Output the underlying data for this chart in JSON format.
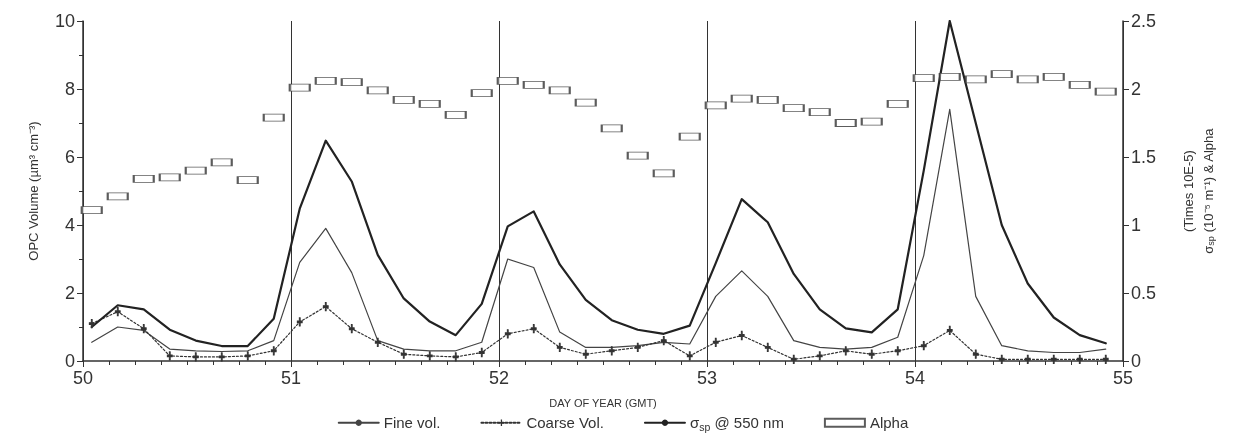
{
  "chart_data": {
    "type": "line",
    "xlabel": "DAY OF YEAR (GMT)",
    "ylabel": "OPC Volume (µm³ cm⁻³)",
    "y2label": "(Times 10E-5)\nσ$_{sp}$ (10⁻⁵ m⁻¹) & Alpha",
    "x": [
      50.042,
      50.167,
      50.292,
      50.417,
      50.542,
      50.667,
      50.792,
      50.917,
      51.042,
      51.167,
      51.292,
      51.417,
      51.542,
      51.667,
      51.792,
      51.917,
      52.042,
      52.167,
      52.292,
      52.417,
      52.542,
      52.667,
      52.792,
      52.917,
      53.042,
      53.167,
      53.292,
      53.417,
      53.542,
      53.667,
      53.792,
      53.917,
      54.042,
      54.167,
      54.292,
      54.417,
      54.542,
      54.667,
      54.792,
      54.917
    ],
    "series": [
      {
        "name": "Fine vol.",
        "color": "#444444",
        "line_style": "solid",
        "values": [
          0.55,
          1.0,
          0.9,
          0.35,
          0.3,
          0.28,
          0.3,
          0.6,
          2.9,
          3.9,
          2.6,
          0.6,
          0.35,
          0.3,
          0.3,
          0.55,
          3.0,
          2.75,
          0.85,
          0.4,
          0.4,
          0.45,
          0.55,
          0.5,
          1.9,
          2.65,
          1.9,
          0.6,
          0.4,
          0.35,
          0.4,
          0.7,
          3.1,
          7.4,
          1.9,
          0.45,
          0.3,
          0.25,
          0.25,
          0.35
        ]
      },
      {
        "name": "Coarse Vol.",
        "color": "#333333",
        "line_style": "dotted",
        "marker": "cross",
        "values": [
          1.1,
          1.45,
          0.95,
          0.15,
          0.12,
          0.12,
          0.15,
          0.3,
          1.15,
          1.6,
          0.95,
          0.55,
          0.2,
          0.15,
          0.12,
          0.25,
          0.8,
          0.95,
          0.4,
          0.2,
          0.3,
          0.4,
          0.6,
          0.15,
          0.55,
          0.75,
          0.4,
          0.05,
          0.15,
          0.3,
          0.2,
          0.3,
          0.45,
          0.9,
          0.2,
          0.05,
          0.05,
          0.05,
          0.05,
          0.05
        ]
      },
      {
        "name": "σ$_{sp}$ @ 550 nm",
        "type": "line",
        "axis": "y2",
        "color": "#222222",
        "line_style": "solid",
        "values": [
          0.25,
          0.41,
          0.38,
          0.23,
          0.15,
          0.11,
          0.11,
          0.31,
          1.12,
          1.62,
          1.32,
          0.78,
          0.46,
          0.29,
          0.19,
          0.42,
          0.99,
          1.1,
          0.71,
          0.45,
          0.3,
          0.23,
          0.2,
          0.26,
          0.72,
          1.19,
          1.02,
          0.64,
          0.38,
          0.24,
          0.21,
          0.38,
          1.4,
          2.5,
          1.75,
          1.0,
          0.57,
          0.32,
          0.19,
          0.13
        ]
      },
      {
        "name": "Alpha",
        "type": "scatter",
        "axis": "y2",
        "color": "#333333",
        "marker": "square",
        "values": [
          1.11,
          1.21,
          1.34,
          1.35,
          1.4,
          1.46,
          1.33,
          1.79,
          2.01,
          2.06,
          2.05,
          1.99,
          1.92,
          1.89,
          1.81,
          1.97,
          2.06,
          2.03,
          1.99,
          1.9,
          1.71,
          1.51,
          1.38,
          1.65,
          1.88,
          1.93,
          1.92,
          1.86,
          1.83,
          1.75,
          1.76,
          1.89,
          2.08,
          2.09,
          2.07,
          2.11,
          2.07,
          2.09,
          2.03,
          1.98
        ]
      }
    ],
    "xlim": [
      50,
      55
    ],
    "xticks": [
      50,
      51,
      52,
      53,
      54,
      55
    ],
    "ylim": [
      0,
      10
    ],
    "yticks": [
      0,
      2,
      4,
      6,
      8,
      10
    ],
    "y2lim": [
      0,
      2.5
    ],
    "y2ticks": [
      0,
      0.5,
      1,
      1.5,
      2,
      2.5
    ],
    "grid": "x",
    "legend": "bottom"
  }
}
